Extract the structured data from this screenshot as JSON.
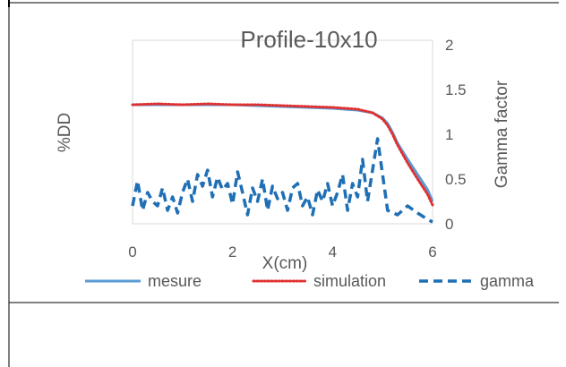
{
  "chart_data": {
    "type": "line",
    "title": "Profile-10x10",
    "xlabel": "X(cm)",
    "ylabel_left": "%DD",
    "ylabel_right": "Gamma factor",
    "xlim": [
      0,
      6
    ],
    "x_ticks": [
      "0",
      "2",
      "4",
      "6"
    ],
    "y_right_lim": [
      0,
      2
    ],
    "y_right_ticks": [
      "0",
      "0.5",
      "1",
      "1.5",
      "2"
    ],
    "legend_position": "bottom",
    "series": [
      {
        "name": "mesure",
        "axis": "right",
        "color": "#5b9bd5",
        "style": "solid",
        "x": [
          0,
          0.5,
          1,
          1.5,
          2,
          2.5,
          3,
          3.5,
          4,
          4.5,
          4.8,
          5.0,
          5.1,
          5.2,
          5.3,
          5.5,
          5.7,
          5.9,
          6.0
        ],
        "y": [
          1.33,
          1.33,
          1.33,
          1.33,
          1.33,
          1.32,
          1.31,
          1.3,
          1.29,
          1.27,
          1.24,
          1.18,
          1.12,
          1.02,
          0.9,
          0.72,
          0.55,
          0.38,
          0.25
        ]
      },
      {
        "name": "simulation",
        "axis": "right",
        "color": "#e03030",
        "style": "dotted",
        "x": [
          0,
          0.5,
          1,
          1.5,
          2,
          2.5,
          3,
          3.5,
          4,
          4.5,
          4.8,
          5.0,
          5.1,
          5.2,
          5.3,
          5.5,
          5.7,
          5.9,
          6.0
        ],
        "y": [
          1.33,
          1.34,
          1.33,
          1.34,
          1.33,
          1.33,
          1.32,
          1.31,
          1.3,
          1.28,
          1.24,
          1.17,
          1.1,
          1.0,
          0.88,
          0.68,
          0.5,
          0.33,
          0.21
        ]
      },
      {
        "name": "gamma",
        "axis": "right",
        "color": "#1f6fb5",
        "style": "dashed",
        "x": [
          0,
          0.1,
          0.2,
          0.3,
          0.4,
          0.5,
          0.6,
          0.7,
          0.8,
          0.9,
          1.0,
          1.1,
          1.2,
          1.3,
          1.4,
          1.5,
          1.6,
          1.7,
          1.8,
          1.9,
          2.0,
          2.1,
          2.2,
          2.3,
          2.4,
          2.5,
          2.6,
          2.7,
          2.8,
          2.9,
          3.0,
          3.1,
          3.2,
          3.3,
          3.4,
          3.5,
          3.6,
          3.7,
          3.8,
          3.9,
          4.0,
          4.1,
          4.2,
          4.3,
          4.4,
          4.5,
          4.6,
          4.7,
          4.8,
          4.9,
          5.0,
          5.1,
          5.3,
          5.5,
          5.7,
          5.9,
          6.0
        ],
        "y": [
          0.2,
          0.48,
          0.15,
          0.35,
          0.25,
          0.2,
          0.4,
          0.15,
          0.3,
          0.12,
          0.35,
          0.5,
          0.25,
          0.55,
          0.42,
          0.6,
          0.3,
          0.52,
          0.38,
          0.45,
          0.22,
          0.58,
          0.35,
          0.1,
          0.4,
          0.25,
          0.5,
          0.15,
          0.42,
          0.28,
          0.35,
          0.15,
          0.4,
          0.45,
          0.2,
          0.3,
          0.1,
          0.38,
          0.25,
          0.45,
          0.2,
          0.35,
          0.55,
          0.15,
          0.45,
          0.3,
          0.72,
          0.25,
          0.6,
          0.95,
          0.55,
          0.15,
          0.1,
          0.2,
          0.12,
          0.05,
          0.02
        ]
      }
    ]
  }
}
